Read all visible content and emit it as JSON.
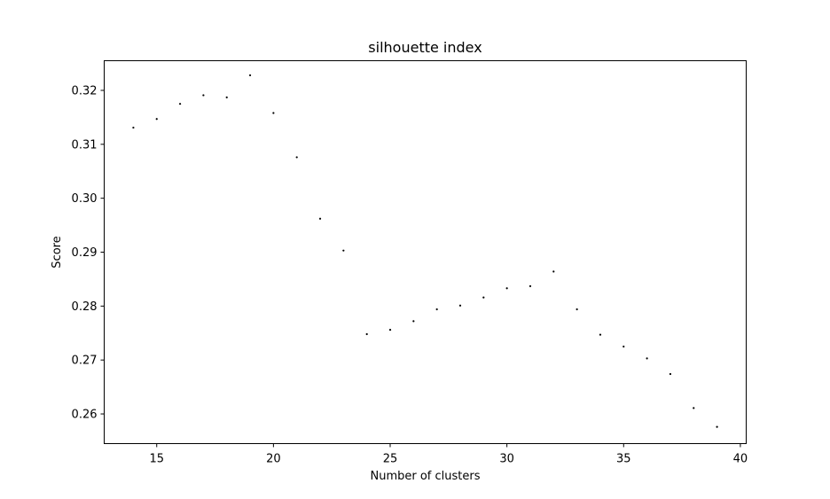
{
  "chart_data": {
    "type": "scatter",
    "title": "silhouette index",
    "xlabel": "Number of clusters",
    "ylabel": "Score",
    "xlim": [
      12.75,
      40.25
    ],
    "ylim": [
      0.2545,
      0.3255
    ],
    "x_ticks": [
      15,
      20,
      25,
      30,
      35,
      40
    ],
    "y_ticks": [
      0.26,
      0.27,
      0.28,
      0.29,
      0.3,
      0.31,
      0.32
    ],
    "x_tick_labels": [
      "15",
      "20",
      "25",
      "30",
      "35",
      "40"
    ],
    "y_tick_labels": [
      "0.26",
      "0.27",
      "0.28",
      "0.29",
      "0.30",
      "0.31",
      "0.32"
    ],
    "grid": false,
    "marker_color": "#000000",
    "series": [
      {
        "x": [
          14,
          15,
          16,
          17,
          18,
          19,
          20,
          21,
          22,
          23,
          24,
          25,
          26,
          27,
          28,
          29,
          30,
          31,
          32,
          33,
          34,
          35,
          36,
          37,
          38,
          39
        ],
        "y": [
          0.3131,
          0.3147,
          0.3175,
          0.3191,
          0.3187,
          0.3228,
          0.3158,
          0.3076,
          0.2962,
          0.2903,
          0.2748,
          0.2756,
          0.2772,
          0.2794,
          0.2801,
          0.2816,
          0.2833,
          0.2837,
          0.2864,
          0.2794,
          0.2747,
          0.2725,
          0.2703,
          0.2674,
          0.2611,
          0.2576
        ]
      }
    ]
  }
}
